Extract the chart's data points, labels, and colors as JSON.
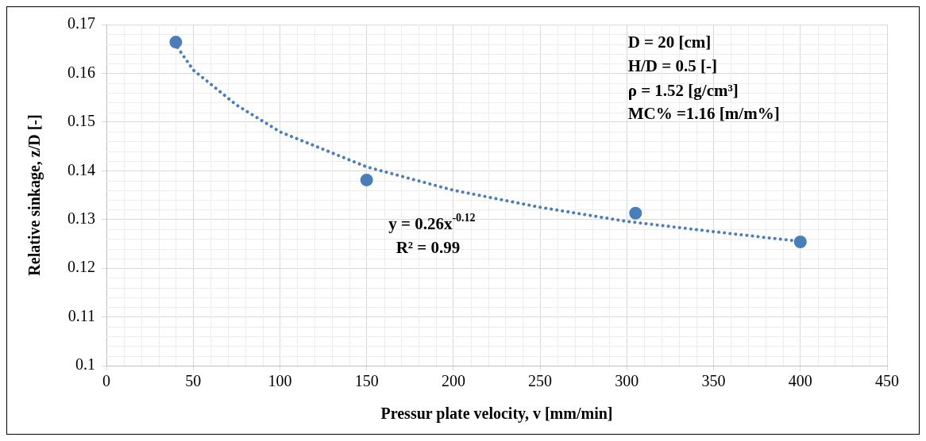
{
  "chart_data": {
    "type": "scatter",
    "xlabel": "Pressur plate velocity, v [mm/min]",
    "ylabel": "Relative sinkage, z/D [-]",
    "xlim": [
      0,
      450
    ],
    "xticks": [
      0,
      50,
      100,
      150,
      200,
      250,
      300,
      350,
      400,
      450
    ],
    "ylim": [
      0.1,
      0.17
    ],
    "yticks": [
      0.1,
      0.11,
      0.12,
      0.13,
      0.14,
      0.15,
      0.16,
      0.17
    ],
    "grid": true,
    "marker": "circle",
    "annotations": [
      "D = 20 [cm]",
      "H/D = 0.5 [-]",
      "ρ = 1.52 [g/cm³]",
      "MC% =1.16 [m/m%]",
      "y = 0.26x$^{-0.12}$",
      "R² = 0.99"
    ],
    "series": [
      {
        "type": "scatter",
        "color": "#4a7ebb",
        "x": [
          40,
          150,
          305,
          400
        ],
        "values": [
          0.1664,
          0.1381,
          0.1313,
          0.1254
        ]
      },
      {
        "type": "line",
        "color": "#4a7ebb",
        "marker": "none",
        "line_style": "dotted",
        "x": [
          41,
          50,
          75,
          100,
          150,
          200,
          250,
          300,
          350,
          400
        ],
        "values": [
          0.1653,
          0.1607,
          0.1535,
          0.148,
          0.1408,
          0.136,
          0.1325,
          0.1296,
          0.1275,
          0.1255
        ]
      }
    ]
  }
}
